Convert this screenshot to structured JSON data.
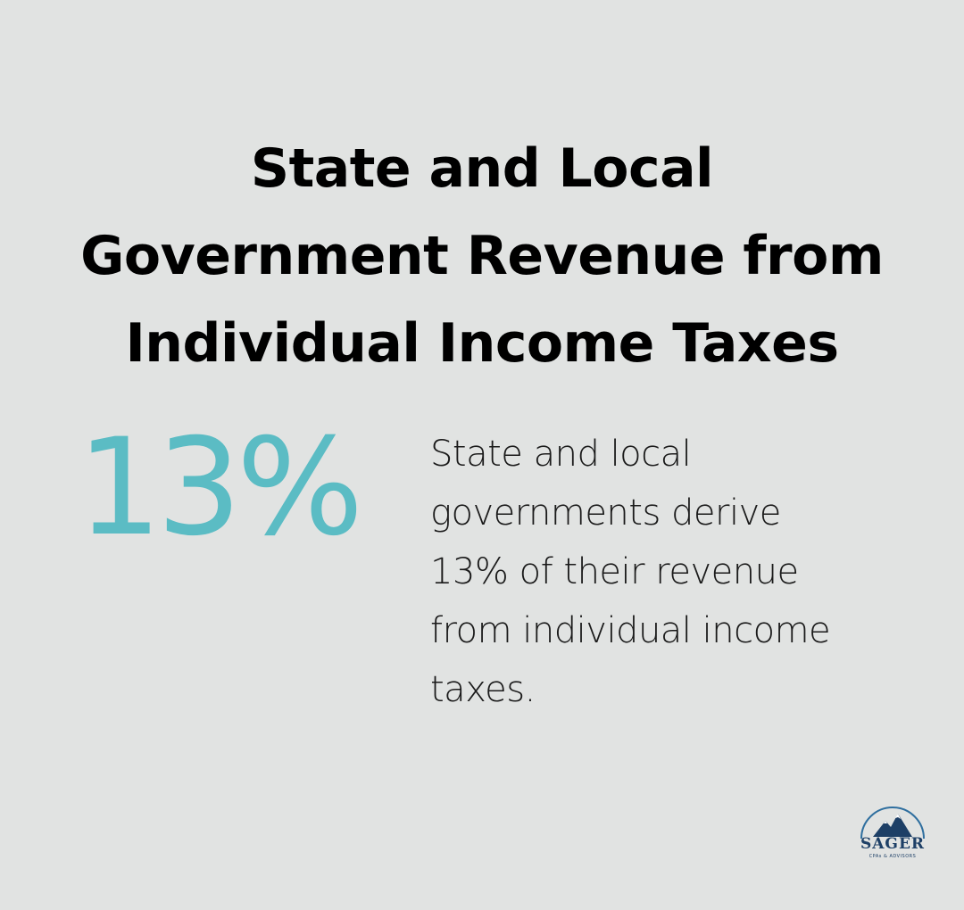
{
  "title": {
    "lines": [
      "State and Local",
      "Government Revenue from",
      "Individual Income Taxes"
    ]
  },
  "stat": {
    "value": "13%"
  },
  "description": {
    "lines": [
      "State and local",
      "governments derive",
      "13% of their revenue",
      "from individual income",
      "taxes."
    ]
  },
  "logo": {
    "name": "SAGER",
    "tagline": "CPAs & ADVISORS",
    "icon": "mountain-icon"
  },
  "colors": {
    "background": "#e1e3e2",
    "title": "#000000",
    "accent": "#5bbcc4",
    "body_text": "#1a1a1a",
    "logo_navy": "#1d3f66",
    "logo_blue": "#2f6f9f"
  }
}
